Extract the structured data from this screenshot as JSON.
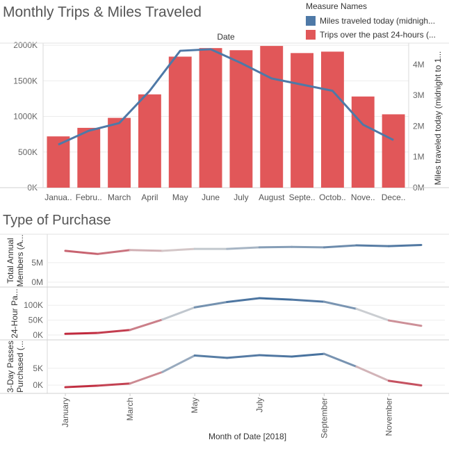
{
  "top_title": "Monthly Trips & Miles Traveled",
  "bottom_title": "Type of Purchase",
  "legend": {
    "title": "Measure Names",
    "items": [
      {
        "label": "Miles traveled today (midnigh...",
        "color": "#4e79a7"
      },
      {
        "label": "Trips over the past 24-hours (...",
        "color": "#e15759"
      }
    ]
  },
  "chart_data": [
    {
      "type": "bar",
      "title": "Monthly Trips & Miles Traveled",
      "header": "Date",
      "categories": [
        "January",
        "February",
        "March",
        "April",
        "May",
        "June",
        "July",
        "August",
        "September",
        "October",
        "November",
        "December"
      ],
      "tick_labels": [
        "Janua..",
        "Febru..",
        "March",
        "April",
        "May",
        "June",
        "July",
        "August",
        "Septe..",
        "Octob..",
        "Nove..",
        "Dece.."
      ],
      "series": [
        {
          "name": "Trips over the past 24-hours (...",
          "kind": "bar",
          "axis": "left",
          "color": "#e15759",
          "values": [
            720000,
            840000,
            980000,
            1310000,
            1840000,
            1960000,
            1930000,
            1990000,
            1890000,
            1910000,
            1280000,
            1030000
          ]
        },
        {
          "name": "Miles traveled today (midnigh...",
          "kind": "line",
          "axis": "right",
          "color": "#4e79a7",
          "values": [
            1400000,
            1850000,
            2100000,
            3150000,
            4450000,
            4500000,
            4050000,
            3550000,
            3350000,
            3150000,
            2050000,
            1550000
          ]
        }
      ],
      "y_left": {
        "ticks": [
          0,
          500000,
          1000000,
          1500000,
          2000000
        ],
        "tick_labels": [
          "0K",
          "500K",
          "1000K",
          "1500K",
          "2000K"
        ],
        "range": [
          0,
          2030000
        ]
      },
      "y_right": {
        "label": "Miles traveled today (midnight to 1...",
        "ticks": [
          0,
          1000000,
          2000000,
          3000000,
          4000000
        ],
        "tick_labels": [
          "0M",
          "1M",
          "2M",
          "3M",
          "4M"
        ],
        "range": [
          0,
          4700000
        ]
      }
    },
    {
      "type": "line",
      "title": "Type of Purchase",
      "categories": [
        "January",
        "February",
        "March",
        "April",
        "May",
        "June",
        "July",
        "August",
        "September",
        "October",
        "November",
        "December"
      ],
      "x_tick_labels": [
        "January",
        "",
        "March",
        "",
        "May",
        "",
        "July",
        "",
        "September",
        "",
        "November",
        ""
      ],
      "xlabel": "Month of Date [2018]",
      "color_gradient": {
        "low": "#c0263a",
        "mid": "#d6d6d6",
        "high": "#3d6a9a"
      },
      "panels": [
        {
          "ylabel": "Total Annual Members (A...",
          "values": [
            8000000,
            7200000,
            8200000,
            8000000,
            8500000,
            8500000,
            8900000,
            9000000,
            8900000,
            9400000,
            9200000,
            9500000
          ],
          "range": [
            0,
            11000000
          ],
          "ticks": [
            0,
            5000000
          ],
          "tick_labels": [
            "0M",
            "5M"
          ]
        },
        {
          "ylabel": "24-Hour Pa...",
          "values": [
            4000,
            7000,
            17000,
            52000,
            93000,
            111000,
            124000,
            119000,
            112000,
            88000,
            49000,
            31000
          ],
          "range": [
            0,
            145000
          ],
          "ticks": [
            0,
            50000,
            100000
          ],
          "tick_labels": [
            "0K",
            "50K",
            "100K"
          ]
        },
        {
          "ylabel": "3-Day Passes Purchased (...",
          "values": [
            -600,
            -150,
            500,
            3900,
            8800,
            8100,
            8900,
            8500,
            9300,
            5500,
            1300,
            -80
          ],
          "range": [
            -1000,
            12000
          ],
          "ticks": [
            0,
            5000
          ],
          "tick_labels": [
            "0K",
            "5K"
          ]
        }
      ]
    }
  ]
}
